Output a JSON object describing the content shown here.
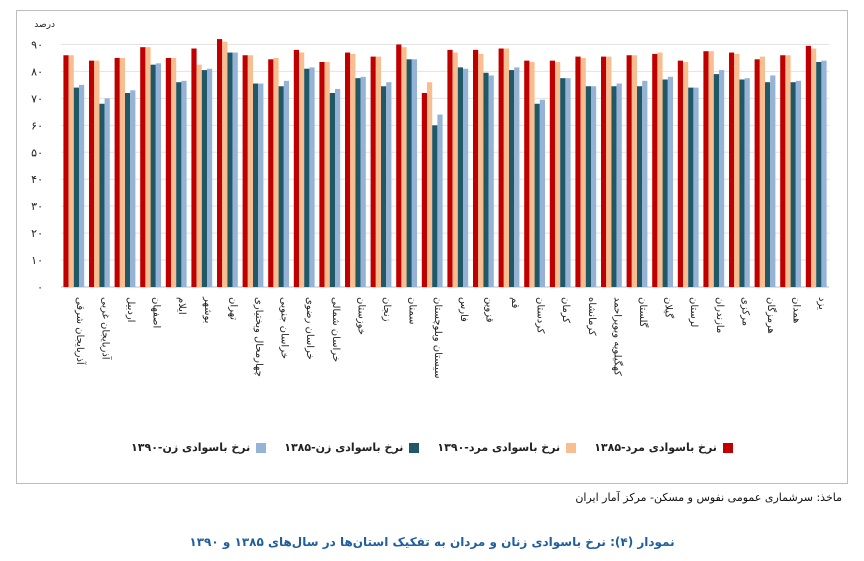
{
  "chart_data": {
    "type": "bar",
    "unit_label": "درصد",
    "ylim": [
      0,
      95
    ],
    "yticks": [
      0,
      10,
      20,
      30,
      40,
      50,
      60,
      70,
      80,
      90
    ],
    "ytick_labels": [
      "۰",
      "۱۰",
      "۲۰",
      "۳۰",
      "۴۰",
      "۵۰",
      "۶۰",
      "۷۰",
      "۸۰",
      "۹۰"
    ],
    "grid": true,
    "legend_position": "bottom",
    "categories": [
      "آذربایجان شرقی",
      "آذربایجان غربی",
      "اردبیل",
      "اصفهان",
      "ایلام",
      "بوشهر",
      "تهران",
      "چهارمحال وبختیاری",
      "خراسان جنوبی",
      "خراسان رضوی",
      "خراسان شمالی",
      "خوزستان",
      "زنجان",
      "سمنان",
      "سیستان وبلوچستان",
      "فارس",
      "قزوین",
      "قم",
      "کردستان",
      "کرمان",
      "کرمانشاه",
      "کهگیلویه وبویراحمد",
      "گلستان",
      "گیلان",
      "لرستان",
      "مازندران",
      "مرکزی",
      "هرمزگان",
      "همدان",
      "یزد"
    ],
    "series": [
      {
        "name": "نرخ باسوادی مرد-۱۳۸۵",
        "color": "#c00000",
        "values": [
          86,
          84,
          85,
          89,
          85,
          88.5,
          92,
          86,
          84.5,
          88,
          83.5,
          87,
          85.5,
          90,
          72,
          88,
          88,
          88.5,
          84,
          84,
          85.5,
          85.5,
          86,
          86.5,
          84,
          87.5,
          87,
          84.5,
          86,
          89.5
        ]
      },
      {
        "name": "نرخ باسوادی مرد-۱۳۹۰",
        "color": "#f9be8f",
        "values": [
          86,
          84,
          85,
          89,
          85,
          82.5,
          91,
          86,
          85,
          87,
          83.5,
          86.5,
          85.5,
          89,
          76,
          87,
          86.5,
          88.5,
          83.5,
          83.5,
          85,
          85.5,
          86,
          87,
          83.5,
          87.5,
          86.5,
          85.5,
          86,
          88.5
        ]
      },
      {
        "name": "نرخ باسوادی زن-۱۳۸۵",
        "color": "#215868",
        "values": [
          74,
          68,
          72,
          82.5,
          76,
          80.5,
          87,
          75.5,
          74.5,
          81,
          72,
          77.5,
          74.5,
          84.5,
          60,
          81.5,
          79.5,
          80.5,
          68,
          77.5,
          74.5,
          74.5,
          74.5,
          77,
          74,
          79,
          77,
          76,
          76,
          83.5
        ]
      },
      {
        "name": "نرخ باسوادی زن-۱۳۹۰",
        "color": "#95b3d7",
        "values": [
          75,
          70,
          73,
          83,
          76.5,
          81,
          87,
          75.5,
          76.5,
          81.5,
          73.5,
          78,
          76,
          84.5,
          64,
          81,
          78.5,
          81.5,
          69.5,
          77.5,
          74.5,
          75.5,
          76.5,
          78,
          74,
          80.5,
          77.5,
          78.5,
          76.5,
          84
        ]
      }
    ]
  },
  "source_text": "ماخذ: سرشماری عمومی نفوس و مسکن- مرکز آمار ایران",
  "caption": "نمودار (۴): نرخ باسوادی زنان و مردان به تفکیک  استان‌ها  در سال‌های ۱۳۸۵ و ۱۳۹۰"
}
